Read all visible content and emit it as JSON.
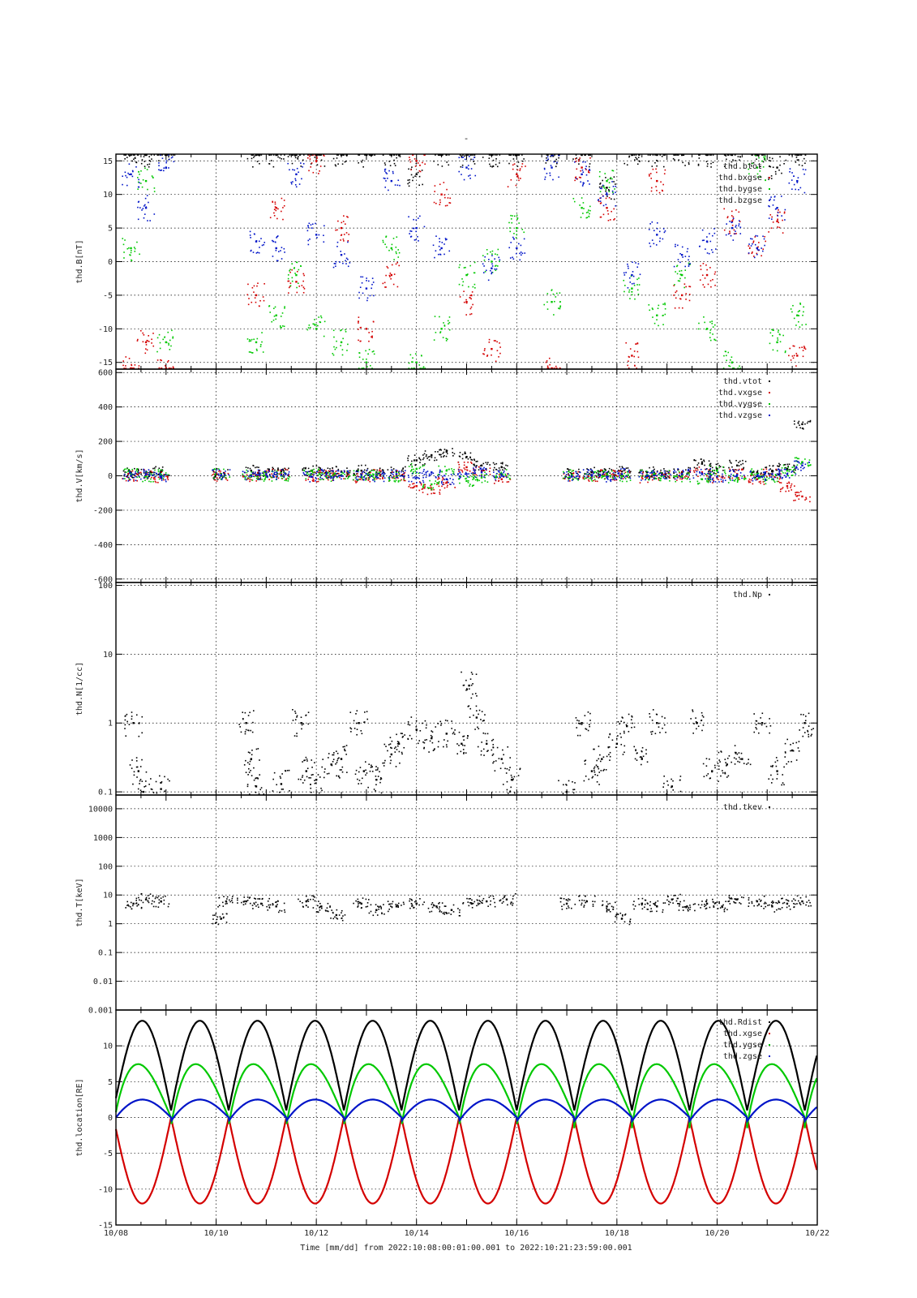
{
  "figure": {
    "title": "-",
    "xlabel": "Time [mm/dd]  from 2022:10:08:00:01:00.001  to  2022:10:21:23:59:00.001",
    "x_ticks": [
      "10/08",
      "10/10",
      "10/12",
      "10/14",
      "10/16",
      "10/18",
      "10/20",
      "10/22"
    ]
  },
  "colors": {
    "black": "#000000",
    "red": "#d40000",
    "green": "#00c800",
    "blue": "#0014c8"
  },
  "chart_data": [
    {
      "type": "scatter",
      "ylabel": "thd.B[nT]",
      "ylim": [
        -16,
        16
      ],
      "scale": "linear",
      "y_ticks": [
        15,
        10,
        5,
        0,
        -5,
        -10,
        -15
      ],
      "y_tick_labels": [
        "15",
        "10",
        "5",
        "0",
        "-5",
        "-10",
        "-15"
      ],
      "legend_position": "top-right",
      "series": [
        {
          "name": "thd.btot",
          "color": "#000000"
        },
        {
          "name": "thd.bxgse",
          "color": "#d40000"
        },
        {
          "name": "thd.bygse",
          "color": "#00c800"
        },
        {
          "name": "thd.bzgse",
          "color": "#0014c8"
        }
      ],
      "x": [
        8.3,
        8.6,
        9.0,
        10.8,
        11.2,
        11.6,
        12.0,
        12.5,
        13.0,
        13.5,
        14.0,
        14.5,
        15.0,
        15.5,
        16.0,
        16.7,
        17.3,
        17.8,
        18.3,
        18.8,
        19.3,
        19.8,
        20.3,
        20.8,
        21.2,
        21.6
      ],
      "values": {
        "thd.btot": [
          16,
          16,
          16,
          16,
          16,
          16,
          16,
          16,
          16,
          16,
          13,
          16,
          16,
          16,
          16,
          16,
          16,
          11,
          16,
          16,
          16,
          16,
          16,
          16,
          14,
          16
        ],
        "thd.bxgse": [
          -16,
          -12,
          -16,
          -5,
          8,
          -3,
          15,
          5,
          -10,
          -2,
          15,
          10,
          -6,
          -13,
          13,
          -16,
          14,
          8,
          -14,
          12,
          -5,
          -2,
          6,
          2,
          6,
          -14
        ],
        "thd.bygse": [
          2,
          12,
          -12,
          -12,
          -8,
          -2,
          -10,
          -12,
          -15,
          2,
          -15,
          -10,
          -2,
          0,
          5,
          -6,
          8,
          12,
          -4,
          -8,
          -2,
          -10,
          -15,
          14,
          -12,
          -8
        ],
        "thd.bzgse": [
          13,
          8,
          14,
          3,
          2,
          13,
          4,
          1,
          -4,
          12,
          5,
          2,
          14,
          -1,
          2,
          14,
          13,
          10,
          -2,
          4,
          1,
          3,
          5,
          2,
          8,
          12
        ]
      }
    },
    {
      "type": "scatter",
      "ylabel": "thd.V[km/s]",
      "ylim": [
        -620,
        620
      ],
      "scale": "linear",
      "y_ticks": [
        600,
        400,
        200,
        0,
        -200,
        -400,
        -600
      ],
      "y_tick_labels": [
        "600",
        "400",
        "200",
        "0",
        "-200",
        "-400",
        "-600"
      ],
      "legend_position": "top-right",
      "series": [
        {
          "name": "thd.vtot",
          "color": "#000000"
        },
        {
          "name": "thd.vxgse",
          "color": "#d40000"
        },
        {
          "name": "thd.vygse",
          "color": "#00c800"
        },
        {
          "name": "thd.vzgse",
          "color": "#0014c8"
        }
      ],
      "x": [
        8.3,
        8.6,
        8.9,
        10.1,
        10.7,
        11.0,
        11.3,
        11.9,
        12.2,
        12.5,
        12.9,
        13.2,
        13.6,
        14.0,
        14.3,
        14.6,
        15.0,
        15.3,
        15.7,
        17.1,
        17.5,
        17.8,
        18.1,
        18.6,
        18.9,
        19.3,
        19.7,
        20.0,
        20.4,
        20.8,
        21.1,
        21.4,
        21.7
      ],
      "values": {
        "thd.vtot": [
          20,
          15,
          25,
          10,
          30,
          20,
          25,
          30,
          20,
          25,
          30,
          20,
          25,
          90,
          120,
          140,
          110,
          60,
          50,
          10,
          20,
          15,
          25,
          20,
          15,
          20,
          70,
          40,
          60,
          20,
          30,
          40,
          300
        ],
        "thd.vxgse": [
          0,
          5,
          -10,
          0,
          -5,
          0,
          10,
          -5,
          5,
          0,
          -10,
          5,
          0,
          -60,
          -80,
          -40,
          50,
          30,
          -20,
          0,
          -5,
          5,
          0,
          -10,
          5,
          0,
          20,
          -10,
          10,
          -20,
          10,
          -60,
          -120
        ],
        "thd.vygse": [
          10,
          -5,
          5,
          10,
          5,
          -5,
          0,
          10,
          -5,
          5,
          0,
          5,
          -5,
          40,
          -50,
          30,
          -30,
          -10,
          10,
          5,
          0,
          10,
          -5,
          5,
          0,
          -5,
          -20,
          30,
          -10,
          10,
          -20,
          30,
          80
        ],
        "thd.vzgse": [
          0,
          10,
          -5,
          5,
          0,
          10,
          5,
          -5,
          10,
          0,
          5,
          -5,
          10,
          -10,
          20,
          -20,
          10,
          20,
          0,
          -5,
          5,
          -5,
          10,
          0,
          5,
          10,
          10,
          -5,
          5,
          0,
          10,
          10,
          60
        ]
      }
    },
    {
      "type": "scatter",
      "ylabel": "thd.N[1/cc]",
      "ylim": [
        0.09,
        110
      ],
      "scale": "log",
      "y_ticks": [
        100,
        10,
        1,
        0.1
      ],
      "y_tick_labels": [
        "100",
        "10",
        "1",
        "0.1"
      ],
      "legend_position": "top-right",
      "series": [
        {
          "name": "thd.Np",
          "color": "#000000"
        }
      ],
      "x": [
        8.35,
        8.45,
        8.55,
        8.9,
        10.6,
        10.7,
        10.8,
        11.3,
        11.7,
        11.8,
        12.0,
        12.3,
        12.5,
        12.85,
        12.95,
        13.2,
        13.5,
        13.65,
        14.0,
        14.3,
        14.6,
        14.9,
        15.05,
        15.2,
        15.4,
        15.7,
        15.9,
        17.0,
        17.3,
        17.5,
        17.7,
        18.0,
        18.2,
        18.5,
        18.8,
        19.1,
        19.6,
        19.9,
        20.2,
        20.5,
        20.9,
        21.2,
        21.5,
        21.75
      ],
      "values": {
        "thd.Np": [
          1.0,
          0.2,
          0.1,
          0.11,
          1.0,
          0.3,
          0.12,
          0.13,
          1.0,
          0.2,
          0.15,
          0.25,
          0.3,
          1.0,
          0.2,
          0.15,
          0.35,
          0.5,
          0.8,
          0.6,
          0.7,
          0.5,
          3.5,
          1.2,
          0.5,
          0.3,
          0.15,
          0.1,
          1.0,
          0.2,
          0.3,
          0.5,
          0.9,
          0.3,
          1.0,
          0.12,
          1.0,
          0.2,
          0.25,
          0.3,
          1.0,
          0.2,
          0.4,
          1.0
        ]
      }
    },
    {
      "type": "scatter",
      "ylabel": "thd.T[keV]",
      "ylim": [
        0.001,
        30000
      ],
      "scale": "log",
      "y_ticks": [
        10000,
        1000,
        100,
        10,
        1,
        0.1,
        0.01,
        0.001
      ],
      "y_tick_labels": [
        "10000",
        "1000",
        "100",
        "10",
        "1",
        "0.1",
        "0.01",
        "0.001"
      ],
      "legend_position": "top-right",
      "series": [
        {
          "name": "thd.tkev",
          "color": "#000000"
        }
      ],
      "x": [
        8.35,
        8.6,
        8.9,
        10.1,
        10.2,
        10.6,
        10.9,
        11.2,
        11.8,
        12.1,
        12.4,
        12.9,
        13.2,
        13.6,
        14.0,
        14.4,
        14.7,
        15.1,
        15.4,
        15.8,
        17.0,
        17.4,
        17.8,
        18.1,
        18.5,
        18.8,
        19.1,
        19.4,
        19.8,
        20.1,
        20.4,
        20.8,
        21.1,
        21.4,
        21.7
      ],
      "values": {
        "thd.tkev": [
          5,
          7,
          6,
          1.5,
          6,
          6,
          5,
          4,
          6,
          4,
          2,
          5,
          3,
          4,
          5,
          4,
          3,
          5,
          6,
          7,
          5,
          6,
          4,
          1.5,
          5,
          4,
          7,
          4,
          5,
          4,
          7,
          6,
          4,
          5,
          6
        ]
      }
    },
    {
      "type": "line",
      "ylabel": "thd.location[RE]",
      "ylim": [
        -15,
        15
      ],
      "scale": "linear",
      "y_ticks": [
        10,
        5,
        0,
        -5,
        -10,
        -15
      ],
      "y_tick_labels": [
        "10",
        "5",
        "0",
        "-5",
        "-10",
        "-15"
      ],
      "legend_position": "top-right",
      "orbit_period_days": 1.15,
      "series": [
        {
          "name": "thd.Rdist",
          "color": "#000000",
          "apogee": 13.5
        },
        {
          "name": "thd.xgse",
          "color": "#d40000",
          "apogee": -12.0
        },
        {
          "name": "thd.ygse",
          "color": "#00c800",
          "apogee": 7.5
        },
        {
          "name": "thd.zgse",
          "color": "#0014c8",
          "apogee": 2.5
        }
      ]
    }
  ]
}
